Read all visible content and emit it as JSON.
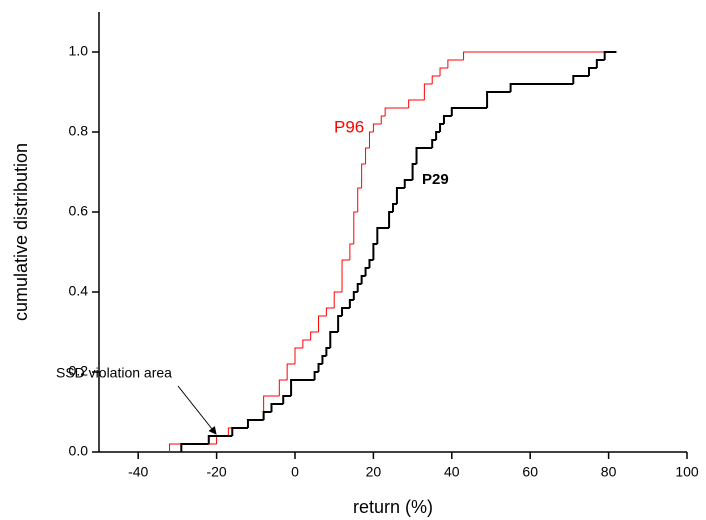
{
  "chart_data": {
    "type": "step",
    "x_label": "return (%)",
    "y_label": "cumulative distribution",
    "xlim": [
      -50,
      100
    ],
    "ylim": [
      0,
      1.1
    ],
    "xticks": [
      -40,
      -20,
      0,
      20,
      40,
      60,
      80,
      100
    ],
    "yticks": [
      {
        "value": 0,
        "label": "0.0"
      },
      0.2,
      0.4,
      0.6,
      0.8,
      {
        "value": 1,
        "label": "1.0"
      }
    ],
    "annotations": [
      "P96",
      "P29",
      "SSD violation area"
    ],
    "series": [
      {
        "name": "P96",
        "color": "#ff0000",
        "width": 1,
        "x": [
          -32,
          -20,
          -17,
          -12,
          -8,
          -4,
          -2,
          0,
          2,
          4,
          6,
          8,
          10,
          12,
          14,
          15,
          16,
          17,
          18,
          19,
          20,
          22,
          23,
          29,
          33,
          35,
          37,
          39,
          43,
          82
        ],
        "values": [
          0.02,
          0.04,
          0.06,
          0.08,
          0.14,
          0.18,
          0.22,
          0.26,
          0.28,
          0.3,
          0.34,
          0.36,
          0.4,
          0.48,
          0.52,
          0.6,
          0.66,
          0.72,
          0.76,
          0.8,
          0.82,
          0.84,
          0.86,
          0.88,
          0.92,
          0.94,
          0.96,
          0.98,
          1.0,
          1.0
        ]
      },
      {
        "name": "P29",
        "color": "#000000",
        "width": 2,
        "x": [
          -29,
          -22,
          -16,
          -12,
          -8,
          -6,
          -3,
          -1,
          5,
          6,
          7,
          8,
          9,
          11,
          12,
          14,
          15,
          16,
          17,
          18,
          19,
          20,
          21,
          24,
          25,
          26,
          28,
          30,
          31,
          35,
          36,
          37,
          38,
          40,
          49,
          55,
          71,
          75,
          77,
          79,
          82
        ],
        "values": [
          0.02,
          0.04,
          0.06,
          0.08,
          0.1,
          0.12,
          0.14,
          0.18,
          0.2,
          0.22,
          0.24,
          0.26,
          0.3,
          0.34,
          0.36,
          0.38,
          0.4,
          0.42,
          0.44,
          0.46,
          0.48,
          0.52,
          0.56,
          0.6,
          0.62,
          0.66,
          0.68,
          0.72,
          0.76,
          0.78,
          0.8,
          0.82,
          0.84,
          0.86,
          0.9,
          0.92,
          0.94,
          0.96,
          0.98,
          1.0,
          1.0
        ]
      }
    ]
  }
}
